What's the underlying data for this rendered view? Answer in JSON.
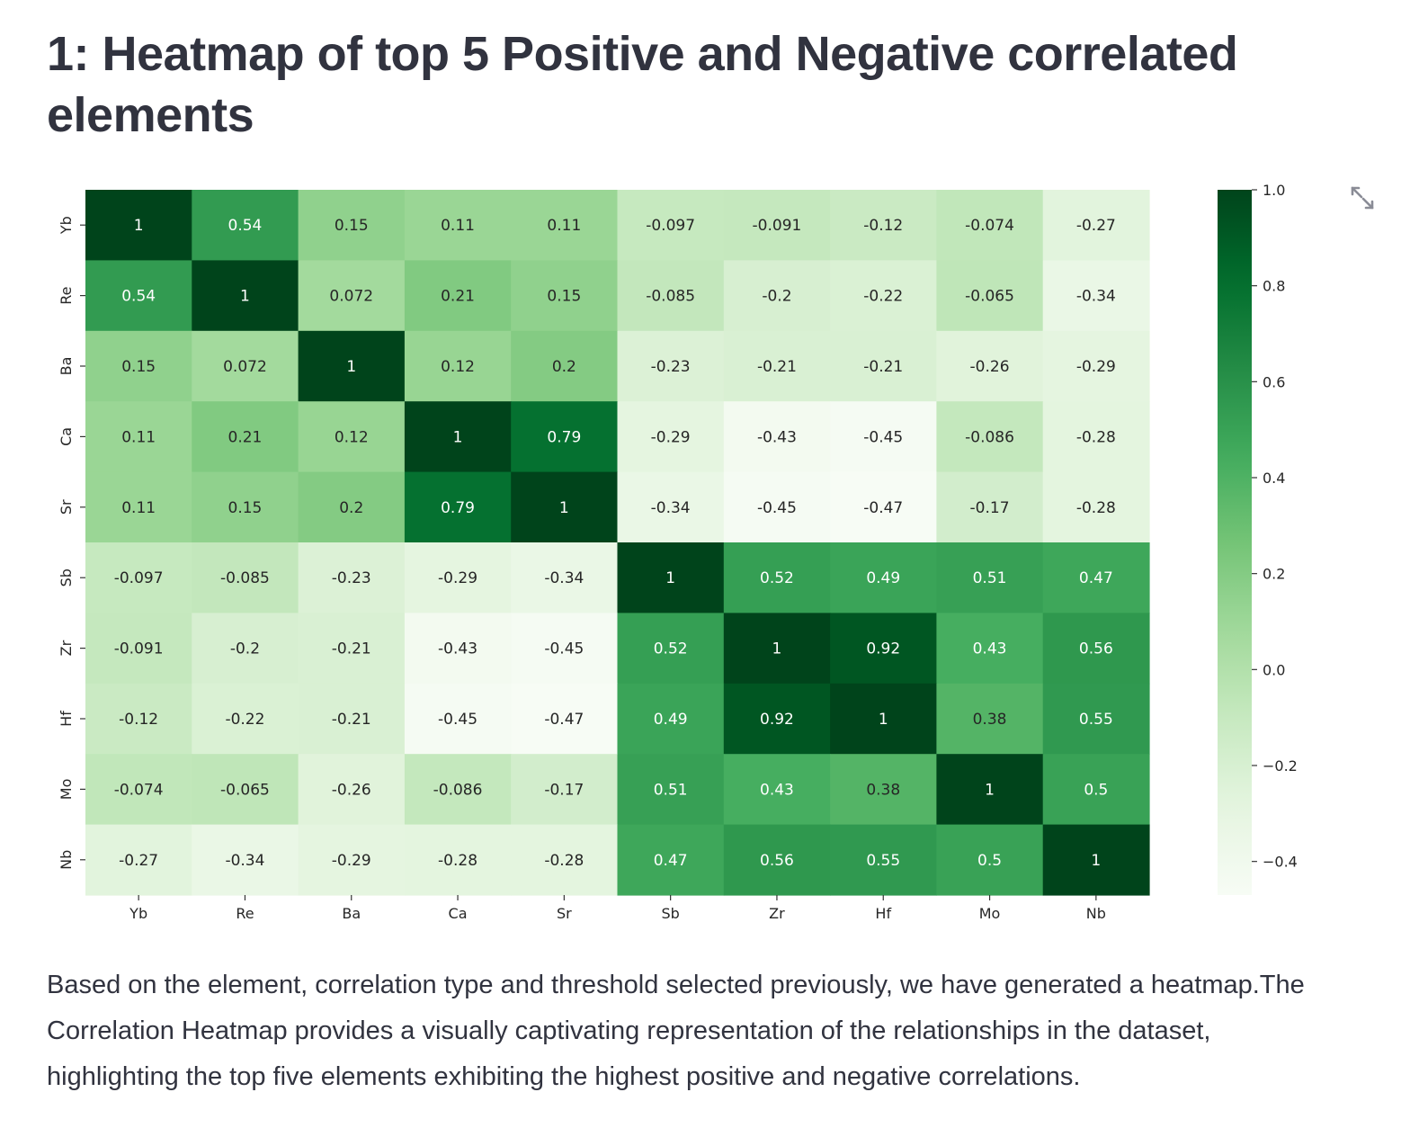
{
  "page": {
    "title": "1: Heatmap of top 5 Positive and Negative correlated elements",
    "description": "Based on the element, correlation type and threshold selected previously, we have generated a heatmap.The Correlation Heatmap provides a visually captivating representation of the relationships in the dataset, highlighting the top five elements exhibiting the highest positive and negative correlations.",
    "expand_icon": "expand-icon"
  },
  "chart_data": {
    "type": "heatmap",
    "title": "",
    "xlabel": "",
    "ylabel": "",
    "labels": [
      "Yb",
      "Re",
      "Ba",
      "Ca",
      "Sr",
      "Sb",
      "Zr",
      "Hf",
      "Mo",
      "Nb"
    ],
    "matrix": [
      [
        1,
        0.54,
        0.15,
        0.11,
        0.11,
        -0.097,
        -0.091,
        -0.12,
        -0.074,
        -0.27
      ],
      [
        0.54,
        1,
        0.072,
        0.21,
        0.15,
        -0.085,
        -0.2,
        -0.22,
        -0.065,
        -0.34
      ],
      [
        0.15,
        0.072,
        1,
        0.12,
        0.2,
        -0.23,
        -0.21,
        -0.21,
        -0.26,
        -0.29
      ],
      [
        0.11,
        0.21,
        0.12,
        1,
        0.79,
        -0.29,
        -0.43,
        -0.45,
        -0.086,
        -0.28
      ],
      [
        0.11,
        0.15,
        0.2,
        0.79,
        1,
        -0.34,
        -0.45,
        -0.47,
        -0.17,
        -0.28
      ],
      [
        -0.097,
        -0.085,
        -0.23,
        -0.29,
        -0.34,
        1,
        0.52,
        0.49,
        0.51,
        0.47
      ],
      [
        -0.091,
        -0.2,
        -0.21,
        -0.43,
        -0.45,
        0.52,
        1,
        0.92,
        0.43,
        0.56
      ],
      [
        -0.12,
        -0.22,
        -0.21,
        -0.45,
        -0.47,
        0.49,
        0.92,
        1,
        0.38,
        0.55
      ],
      [
        -0.074,
        -0.065,
        -0.26,
        -0.086,
        -0.17,
        0.51,
        0.43,
        0.38,
        1,
        0.5
      ],
      [
        -0.27,
        -0.34,
        -0.29,
        -0.28,
        -0.28,
        0.47,
        0.56,
        0.55,
        0.5,
        1
      ]
    ],
    "vmin": -0.47,
    "vmax": 1.0,
    "colormap": "Greens",
    "colorbar_ticks": [
      "1.0",
      "0.8",
      "0.6",
      "0.4",
      "0.2",
      "0.0",
      "−0.2",
      "−0.4"
    ],
    "colorbar_tick_values": [
      1.0,
      0.8,
      0.6,
      0.4,
      0.2,
      0.0,
      -0.2,
      -0.4
    ],
    "annotations": true,
    "grid": false
  }
}
